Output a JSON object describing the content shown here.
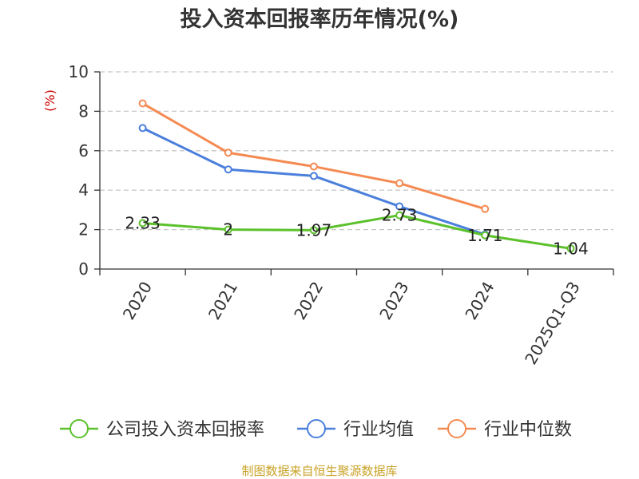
{
  "chart_data": {
    "type": "line",
    "title": "投入资本回报率历年情况(%)",
    "ylabel": "(%)",
    "xlabel": "",
    "categories": [
      "2020",
      "2021",
      "2022",
      "2023",
      "2024",
      "2025Q1-Q3"
    ],
    "ylim": [
      0,
      10
    ],
    "yticks": [
      0,
      2,
      4,
      6,
      8,
      10
    ],
    "grid": true,
    "legend_position": "bottom",
    "series": [
      {
        "name": "公司投入资本回报率",
        "color": "#5cc12c",
        "values": [
          2.33,
          2.0,
          1.97,
          2.73,
          1.71,
          1.04
        ],
        "labels": [
          "2.33",
          "2",
          "1.97",
          "2.73",
          "1.71",
          "1.04"
        ]
      },
      {
        "name": "行业均值",
        "color": "#4a7fdc",
        "values": [
          7.15,
          5.05,
          4.72,
          3.18,
          1.75,
          null
        ]
      },
      {
        "name": "行业中位数",
        "color": "#f48a52",
        "values": [
          8.4,
          5.9,
          5.2,
          4.35,
          3.05,
          null
        ]
      }
    ]
  },
  "source_text": "制图数据来自恒生聚源数据库"
}
